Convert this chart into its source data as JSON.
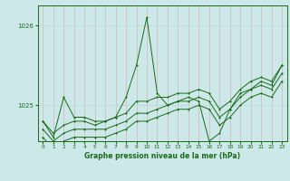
{
  "title": "Graphe pression niveau de la mer (hPa)",
  "bg_color": "#cce8e8",
  "line_color": "#1a6b1a",
  "grid_color_v": "#aacece",
  "grid_color_h": "#b8d8d8",
  "yticks": [
    1025,
    1026
  ],
  "ylim": [
    1024.55,
    1026.25
  ],
  "xlim": [
    -0.5,
    23.5
  ],
  "xticks": [
    0,
    1,
    2,
    3,
    4,
    5,
    6,
    7,
    8,
    9,
    10,
    11,
    12,
    13,
    14,
    15,
    16,
    17,
    18,
    19,
    20,
    21,
    22,
    23
  ],
  "series_spike": [
    1024.8,
    1024.6,
    1025.1,
    1024.85,
    1024.85,
    1024.8,
    1024.8,
    1024.85,
    1025.1,
    1025.5,
    1026.1,
    1025.15,
    1025.0,
    1025.05,
    1025.1,
    1025.05,
    1024.55,
    1024.65,
    1024.95,
    1025.15,
    1025.2,
    1025.3,
    1025.25,
    1025.5
  ],
  "series_high": [
    1024.8,
    1024.65,
    1024.75,
    1024.8,
    1024.8,
    1024.75,
    1024.8,
    1024.85,
    1024.9,
    1025.05,
    1025.05,
    1025.1,
    1025.1,
    1025.15,
    1025.15,
    1025.2,
    1025.15,
    1024.95,
    1025.05,
    1025.2,
    1025.3,
    1025.35,
    1025.3,
    1025.5
  ],
  "series_mid": [
    1024.7,
    1024.55,
    1024.65,
    1024.7,
    1024.7,
    1024.7,
    1024.7,
    1024.75,
    1024.8,
    1024.9,
    1024.9,
    1024.95,
    1025.0,
    1025.05,
    1025.05,
    1025.1,
    1025.05,
    1024.85,
    1024.95,
    1025.1,
    1025.2,
    1025.25,
    1025.2,
    1025.4
  ],
  "series_low": [
    1024.6,
    1024.45,
    1024.55,
    1024.6,
    1024.6,
    1024.6,
    1024.6,
    1024.65,
    1024.7,
    1024.8,
    1024.8,
    1024.85,
    1024.9,
    1024.95,
    1024.95,
    1025.0,
    1024.95,
    1024.75,
    1024.85,
    1025.0,
    1025.1,
    1025.15,
    1025.1,
    1025.3
  ]
}
